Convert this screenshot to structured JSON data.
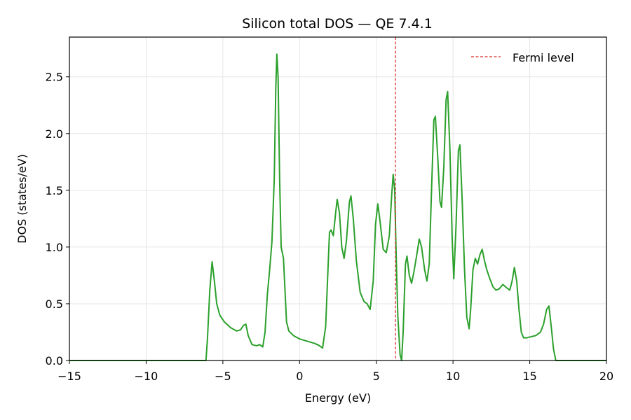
{
  "chart_data": {
    "type": "line",
    "title": "Silicon total DOS — QE 7.4.1",
    "xlabel": "Energy (eV)",
    "ylabel": "DOS (states/eV)",
    "xlim": [
      -15,
      20
    ],
    "ylim": [
      0,
      2.85
    ],
    "xticks": [
      -15,
      -10,
      -5,
      0,
      5,
      10,
      15,
      20
    ],
    "xtick_labels": [
      "−15",
      "−10",
      "−5",
      "0",
      "5",
      "10",
      "15",
      "20"
    ],
    "yticks": [
      0,
      0.5,
      1.0,
      1.5,
      2.0,
      2.5
    ],
    "ytick_labels": [
      "0.0",
      "0.5",
      "1.0",
      "1.5",
      "2.0",
      "2.5"
    ],
    "grid": true,
    "legend_position": "top-right",
    "series": [
      {
        "name": "",
        "color": "#2ca02c",
        "points": [
          [
            -15,
            0
          ],
          [
            -6.4,
            0
          ],
          [
            -6.1,
            0.0
          ],
          [
            -6.0,
            0.2
          ],
          [
            -5.85,
            0.62
          ],
          [
            -5.7,
            0.87
          ],
          [
            -5.55,
            0.7
          ],
          [
            -5.4,
            0.5
          ],
          [
            -5.2,
            0.4
          ],
          [
            -4.9,
            0.34
          ],
          [
            -4.5,
            0.29
          ],
          [
            -4.1,
            0.26
          ],
          [
            -3.85,
            0.27
          ],
          [
            -3.65,
            0.31
          ],
          [
            -3.5,
            0.32
          ],
          [
            -3.35,
            0.22
          ],
          [
            -3.1,
            0.14
          ],
          [
            -2.8,
            0.13
          ],
          [
            -2.6,
            0.14
          ],
          [
            -2.4,
            0.12
          ],
          [
            -2.25,
            0.25
          ],
          [
            -2.1,
            0.58
          ],
          [
            -1.95,
            0.8
          ],
          [
            -1.8,
            1.05
          ],
          [
            -1.65,
            1.6
          ],
          [
            -1.55,
            2.4
          ],
          [
            -1.48,
            2.7
          ],
          [
            -1.4,
            2.5
          ],
          [
            -1.3,
            1.6
          ],
          [
            -1.2,
            1.0
          ],
          [
            -1.05,
            0.9
          ],
          [
            -0.95,
            0.62
          ],
          [
            -0.85,
            0.34
          ],
          [
            -0.7,
            0.26
          ],
          [
            -0.4,
            0.22
          ],
          [
            0,
            0.19
          ],
          [
            0.5,
            0.17
          ],
          [
            1.0,
            0.15
          ],
          [
            1.3,
            0.13
          ],
          [
            1.5,
            0.11
          ],
          [
            1.7,
            0.3
          ],
          [
            1.85,
            0.8
          ],
          [
            1.95,
            1.13
          ],
          [
            2.05,
            1.15
          ],
          [
            2.2,
            1.1
          ],
          [
            2.35,
            1.3
          ],
          [
            2.45,
            1.42
          ],
          [
            2.6,
            1.3
          ],
          [
            2.75,
            1.0
          ],
          [
            2.9,
            0.9
          ],
          [
            3.05,
            1.05
          ],
          [
            3.25,
            1.4
          ],
          [
            3.35,
            1.45
          ],
          [
            3.5,
            1.25
          ],
          [
            3.7,
            0.88
          ],
          [
            3.95,
            0.6
          ],
          [
            4.2,
            0.52
          ],
          [
            4.4,
            0.5
          ],
          [
            4.6,
            0.45
          ],
          [
            4.8,
            0.7
          ],
          [
            4.95,
            1.2
          ],
          [
            5.1,
            1.38
          ],
          [
            5.25,
            1.22
          ],
          [
            5.45,
            0.98
          ],
          [
            5.65,
            0.95
          ],
          [
            5.85,
            1.1
          ],
          [
            6.0,
            1.45
          ],
          [
            6.1,
            1.64
          ],
          [
            6.2,
            1.5
          ],
          [
            6.3,
            0.9
          ],
          [
            6.4,
            0.4
          ],
          [
            6.55,
            0.05
          ],
          [
            6.65,
            0.0
          ],
          [
            6.75,
            0.25
          ],
          [
            6.9,
            0.85
          ],
          [
            7.0,
            0.92
          ],
          [
            7.15,
            0.75
          ],
          [
            7.3,
            0.68
          ],
          [
            7.45,
            0.78
          ],
          [
            7.6,
            0.9
          ],
          [
            7.8,
            1.07
          ],
          [
            7.95,
            1.0
          ],
          [
            8.15,
            0.8
          ],
          [
            8.3,
            0.7
          ],
          [
            8.45,
            0.85
          ],
          [
            8.6,
            1.5
          ],
          [
            8.75,
            2.12
          ],
          [
            8.85,
            2.15
          ],
          [
            9.0,
            1.8
          ],
          [
            9.15,
            1.4
          ],
          [
            9.25,
            1.35
          ],
          [
            9.4,
            1.7
          ],
          [
            9.55,
            2.3
          ],
          [
            9.65,
            2.37
          ],
          [
            9.8,
            1.85
          ],
          [
            9.95,
            1.05
          ],
          [
            10.05,
            0.72
          ],
          [
            10.2,
            1.2
          ],
          [
            10.35,
            1.85
          ],
          [
            10.45,
            1.9
          ],
          [
            10.6,
            1.4
          ],
          [
            10.75,
            0.8
          ],
          [
            10.9,
            0.38
          ],
          [
            11.05,
            0.28
          ],
          [
            11.15,
            0.45
          ],
          [
            11.3,
            0.8
          ],
          [
            11.45,
            0.9
          ],
          [
            11.6,
            0.85
          ],
          [
            11.75,
            0.93
          ],
          [
            11.9,
            0.98
          ],
          [
            12.05,
            0.88
          ],
          [
            12.2,
            0.8
          ],
          [
            12.4,
            0.72
          ],
          [
            12.6,
            0.65
          ],
          [
            12.8,
            0.62
          ],
          [
            13.0,
            0.63
          ],
          [
            13.25,
            0.67
          ],
          [
            13.5,
            0.64
          ],
          [
            13.7,
            0.62
          ],
          [
            13.85,
            0.7
          ],
          [
            14.0,
            0.82
          ],
          [
            14.15,
            0.7
          ],
          [
            14.3,
            0.45
          ],
          [
            14.45,
            0.25
          ],
          [
            14.6,
            0.2
          ],
          [
            14.8,
            0.2
          ],
          [
            15.1,
            0.21
          ],
          [
            15.4,
            0.22
          ],
          [
            15.7,
            0.25
          ],
          [
            15.9,
            0.32
          ],
          [
            16.1,
            0.45
          ],
          [
            16.25,
            0.48
          ],
          [
            16.4,
            0.3
          ],
          [
            16.55,
            0.1
          ],
          [
            16.7,
            0.0
          ],
          [
            17.0,
            0.0
          ],
          [
            20,
            0
          ]
        ]
      }
    ],
    "reference_lines": [
      {
        "name": "Fermi level",
        "x": 6.25,
        "color": "#d62728",
        "style": "dashed"
      }
    ]
  }
}
